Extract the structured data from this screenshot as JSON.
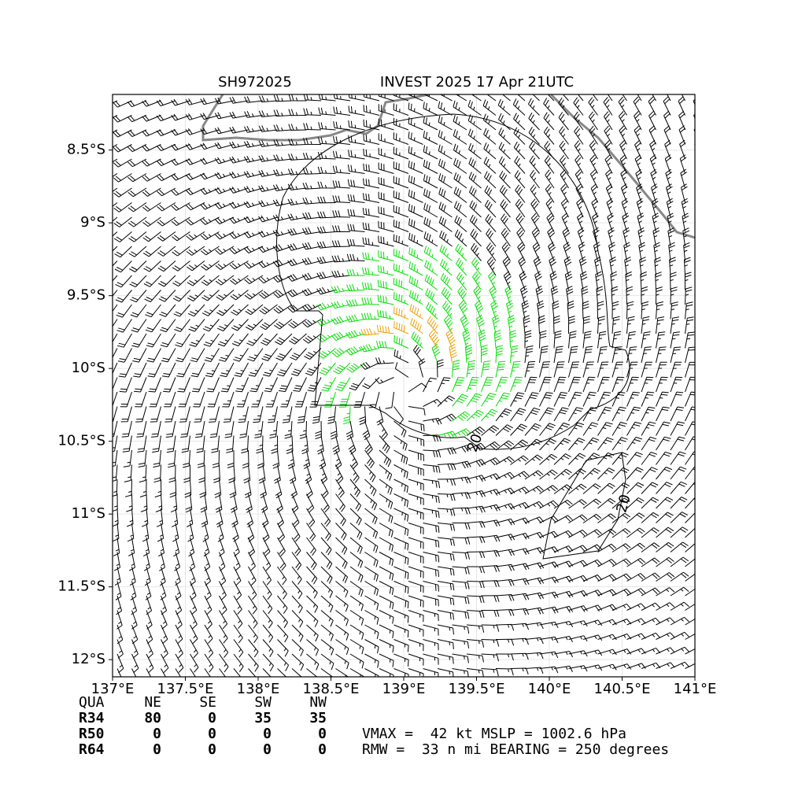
{
  "chart_data": {
    "type": "barbs",
    "title_left": "SH972025",
    "title_right": "INVEST 2025 17 Apr 21UTC",
    "xlim": [
      137,
      141
    ],
    "ylim": [
      -12.118,
      -8.118
    ],
    "xticks": [
      {
        "value": 137,
        "label": "137°E"
      },
      {
        "value": 137.5,
        "label": "137.5°E"
      },
      {
        "value": 138,
        "label": "138°E"
      },
      {
        "value": 138.5,
        "label": "138.5°E"
      },
      {
        "value": 139,
        "label": "139°E"
      },
      {
        "value": 139.5,
        "label": "139.5°E"
      },
      {
        "value": 140,
        "label": "140°E"
      },
      {
        "value": 140.5,
        "label": "140.5°E"
      },
      {
        "value": 141,
        "label": "141°E"
      }
    ],
    "yticks": [
      {
        "value": -8.5,
        "label": "8.5°S"
      },
      {
        "value": -9,
        "label": "9°S"
      },
      {
        "value": -9.5,
        "label": "9.5°S"
      },
      {
        "value": -10,
        "label": "10°S"
      },
      {
        "value": -10.5,
        "label": "10.5°S"
      },
      {
        "value": -11,
        "label": "11°S"
      },
      {
        "value": -11.5,
        "label": "11.5°S"
      },
      {
        "value": -12,
        "label": "12°S"
      }
    ],
    "contour_labels": [
      "20",
      "20"
    ]
  },
  "table": {
    "header": [
      "QUA",
      "NE",
      "SE",
      "SW",
      "NW"
    ],
    "rows": [
      [
        "R34",
        "80",
        "0",
        "35",
        "35"
      ],
      [
        "R50",
        "0",
        "0",
        "0",
        "0"
      ],
      [
        "R64",
        "0",
        "0",
        "0",
        "0"
      ]
    ]
  },
  "info": [
    "VMAX =  42 kt MSLP = 1002.6 hPa",
    "RMW =  33 n mi BEARING = 250 degrees"
  ]
}
